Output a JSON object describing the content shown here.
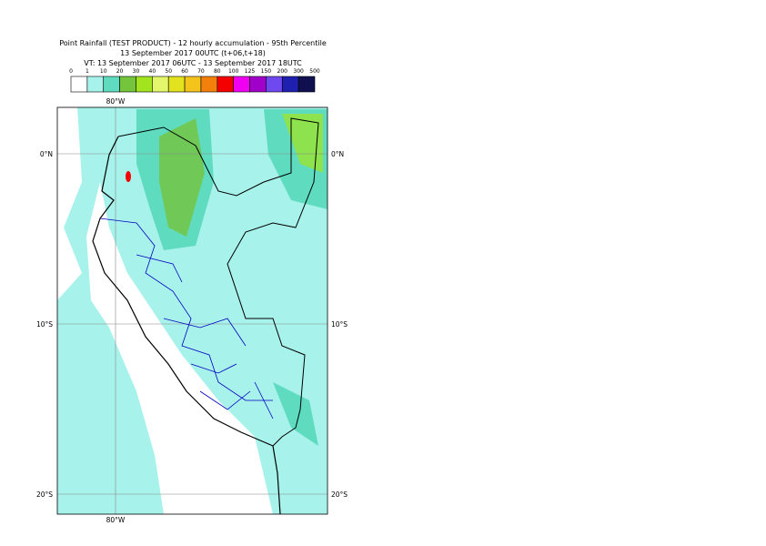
{
  "header": {
    "title": "Point Rainfall (TEST PRODUCT) - 12 hourly accumulation - 95th Percentile",
    "base_time": "13 September 2017 00UTC (t+06,t+18)",
    "valid_time": "VT: 13 September 2017 06UTC - 13 September 2017 18UTC"
  },
  "legend": {
    "thresholds": [
      0,
      1,
      10,
      20,
      30,
      40,
      50,
      60,
      70,
      80,
      100,
      125,
      150,
      200,
      300,
      500
    ],
    "colors": [
      "#ffffff",
      "#a8f2ec",
      "#5fdcc0",
      "#74c43c",
      "#a2e41e",
      "#e4f76c",
      "#e2e21e",
      "#f4c41c",
      "#f4800c",
      "#f40000",
      "#f000f0",
      "#a000c8",
      "#7048f0",
      "#2020b0",
      "#101050"
    ]
  },
  "map": {
    "lon_label_top": "80°W",
    "lon_label_bottom": "80°W",
    "lat_labels_left": [
      "0°N",
      "10°S",
      "20°S"
    ],
    "lat_labels_right": [
      "0°N",
      "10°S",
      "20°S"
    ]
  }
}
